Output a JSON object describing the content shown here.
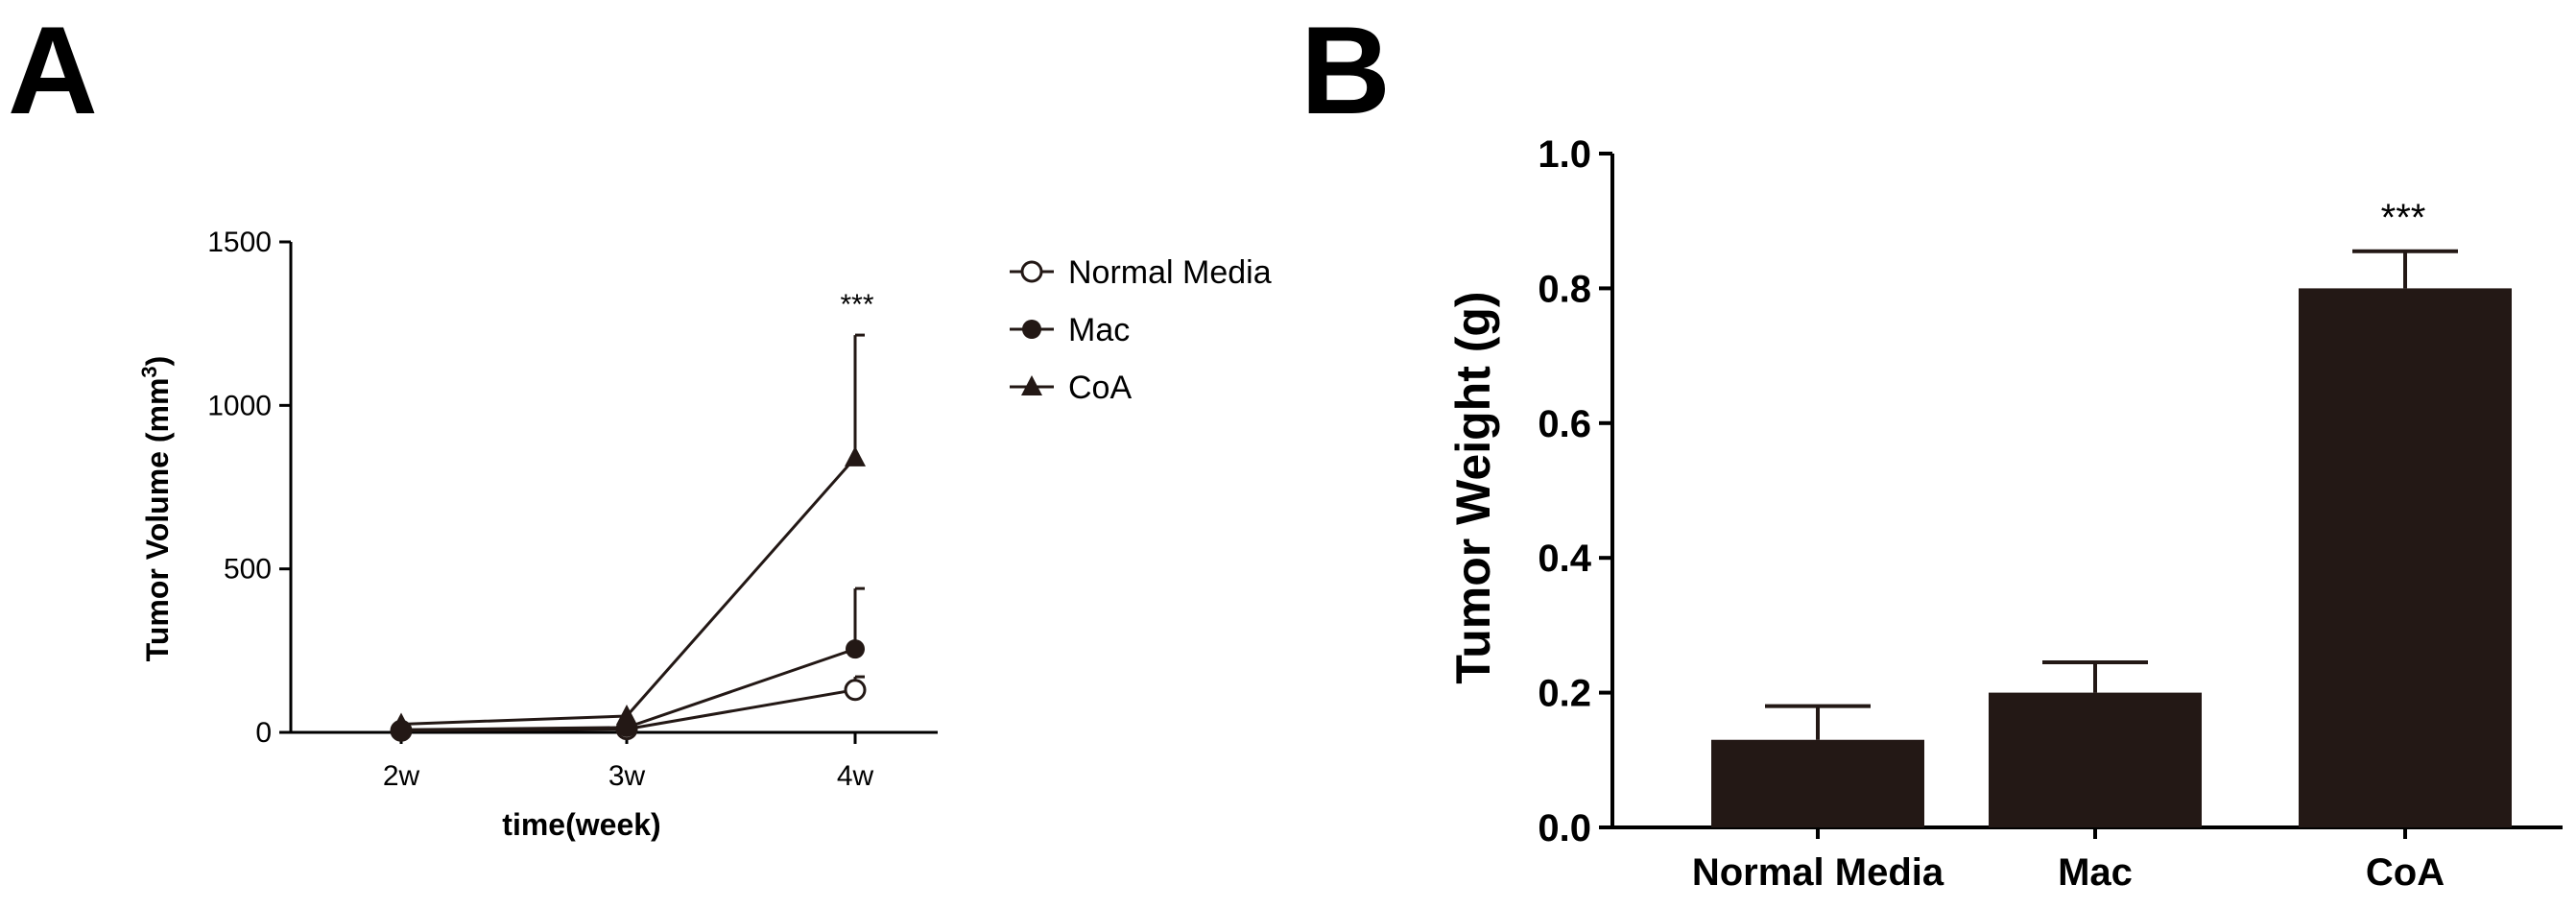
{
  "panels": {
    "a": {
      "label": "A"
    },
    "b": {
      "label": "B"
    }
  },
  "chart_data": [
    {
      "type": "line",
      "panel": "A",
      "xlabel": "time(week)",
      "ylabel_main": "Tumor Volume (mm",
      "ylabel_sup": "3",
      "ylabel_end": ")",
      "categories": [
        "2w",
        "3w",
        "4w"
      ],
      "ylim": [
        0,
        1500
      ],
      "yticks": [
        0,
        500,
        1000,
        1500
      ],
      "annotation": {
        "text": "***",
        "category": "4w"
      },
      "legend_position": "right",
      "series": [
        {
          "name": "Normal Media",
          "marker": "open-circle",
          "values": [
            5,
            10,
            130
          ],
          "errors": [
            0,
            0,
            40
          ]
        },
        {
          "name": "Mac",
          "marker": "filled-circle",
          "values": [
            8,
            15,
            255
          ],
          "errors": [
            0,
            0,
            185
          ]
        },
        {
          "name": "CoA",
          "marker": "filled-triangle",
          "values": [
            25,
            50,
            840
          ],
          "errors": [
            0,
            0,
            375
          ]
        }
      ]
    },
    {
      "type": "bar",
      "panel": "B",
      "ylabel": "Tumor Weight (g)",
      "categories": [
        "Normal Media",
        "Mac",
        "CoA"
      ],
      "values": [
        0.13,
        0.2,
        0.8
      ],
      "errors": [
        0.05,
        0.045,
        0.055
      ],
      "ylim": [
        0,
        1.0
      ],
      "yticks": [
        "0.0",
        "0.2",
        "0.4",
        "0.6",
        "0.8",
        "1.0"
      ],
      "annotation": {
        "text": "***",
        "category": "CoA"
      },
      "colors": {
        "bar": "#231815"
      }
    }
  ]
}
